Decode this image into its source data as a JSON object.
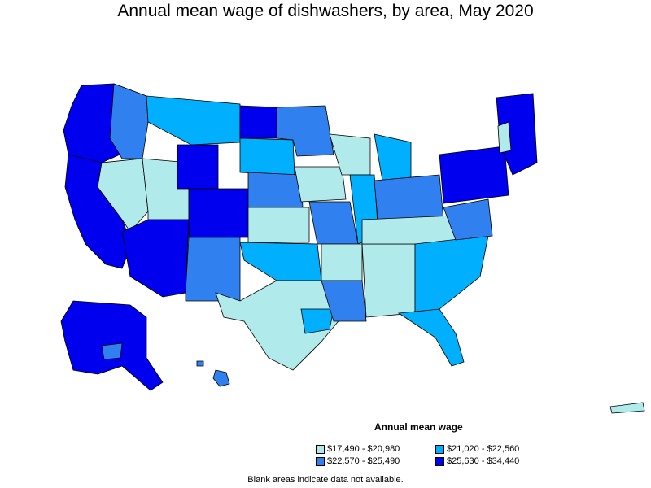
{
  "title": "Annual mean wage of dishwashers, by area, May 2020",
  "legend": {
    "title": "Annual mean wage",
    "items": [
      {
        "label": "$17,490 - $20,980",
        "color": "#b0eaea"
      },
      {
        "label": "$21,020 - $22,560",
        "color": "#00b0ff"
      },
      {
        "label": "$22,570 - $25,490",
        "color": "#3080f0"
      },
      {
        "label": "$25,630 - $34,440",
        "color": "#0000ee"
      }
    ]
  },
  "footnote": "Blank areas indicate data not available.",
  "colors": {
    "tier1": "#b0eaea",
    "tier2": "#00b0ff",
    "tier3": "#3080f0",
    "tier4": "#0000ee",
    "border": "#000000"
  }
}
